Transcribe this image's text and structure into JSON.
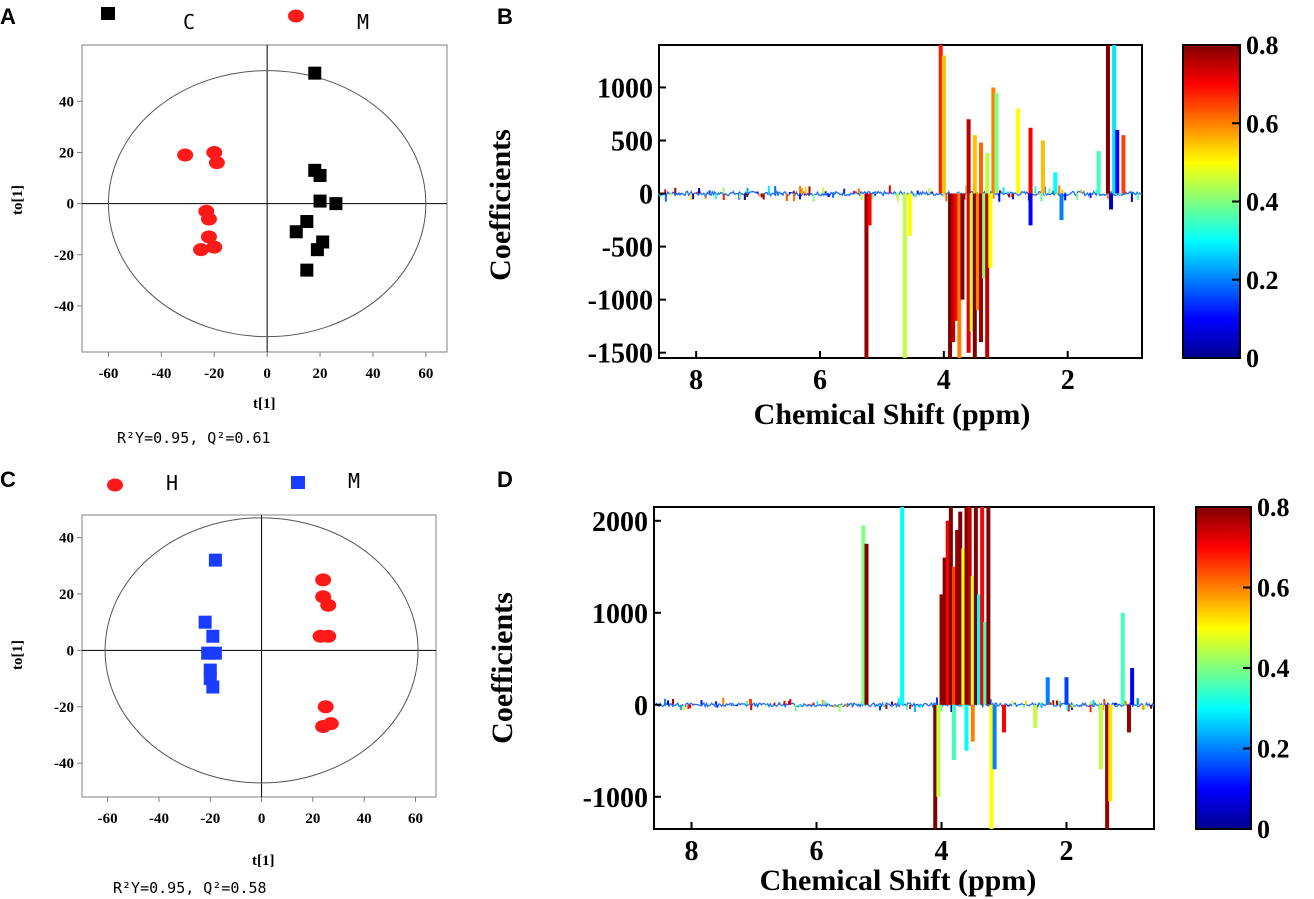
{
  "panels": {
    "A": "A",
    "B": "B",
    "C": "C",
    "D": "D"
  },
  "chart_data": [
    {
      "id": "A",
      "type": "scatter",
      "xlabel": "t[1]",
      "ylabel": "to[1]",
      "xlim": [
        -70,
        68
      ],
      "ylim": [
        -58,
        62
      ],
      "xticks": [
        -60,
        -40,
        -20,
        0,
        20,
        40,
        60
      ],
      "yticks": [
        -40,
        -20,
        0,
        20,
        40
      ],
      "ellipse": {
        "rx": 60,
        "ry": 52
      },
      "stats": "R²Y=0.95, Q²=0.61",
      "legend": [
        {
          "name": "C",
          "marker": "square",
          "color": "#000000"
        },
        {
          "name": "M",
          "marker": "circle",
          "color": "#ff1a1a"
        }
      ],
      "series": [
        {
          "name": "C",
          "marker": "square",
          "color": "#000000",
          "points": [
            [
              18,
              51
            ],
            [
              18,
              13
            ],
            [
              20,
              11
            ],
            [
              20,
              1
            ],
            [
              26,
              0
            ],
            [
              15,
              -7
            ],
            [
              11,
              -11
            ],
            [
              21,
              -15
            ],
            [
              19,
              -18
            ],
            [
              15,
              -26
            ]
          ]
        },
        {
          "name": "M",
          "marker": "circle",
          "color": "#ff1a1a",
          "points": [
            [
              -31,
              19
            ],
            [
              -20,
              20
            ],
            [
              -19,
              16
            ],
            [
              -23,
              -3
            ],
            [
              -22,
              -6
            ],
            [
              -22,
              -13
            ],
            [
              -20,
              -17
            ],
            [
              -25,
              -18
            ]
          ]
        }
      ]
    },
    {
      "id": "B",
      "type": "line",
      "xlabel": "Chemical Shift (ppm)",
      "ylabel": "Coefficients",
      "xlim": [
        8.6,
        0.8
      ],
      "ylim": [
        -1550,
        1400
      ],
      "xticks": [
        8,
        6,
        4,
        2
      ],
      "yticks": [
        1000,
        500,
        0,
        -500,
        -1000,
        -1500
      ],
      "colorbar": {
        "min": 0,
        "max": 0.8,
        "ticks": [
          "0.8",
          "0.6",
          "0.4",
          "0.2",
          "0"
        ]
      },
      "spikes": [
        [
          5.25,
          -1550,
          0.78
        ],
        [
          5.2,
          -300,
          0.7
        ],
        [
          4.63,
          -1550,
          0.45
        ],
        [
          4.55,
          -400,
          0.5
        ],
        [
          4.05,
          1400,
          0.68
        ],
        [
          4.0,
          1300,
          0.55
        ],
        [
          3.9,
          -1550,
          0.8
        ],
        [
          3.85,
          -1400,
          0.75
        ],
        [
          3.8,
          -1200,
          0.7
        ],
        [
          3.75,
          -1550,
          0.6
        ],
        [
          3.7,
          -1000,
          0.8
        ],
        [
          3.6,
          -1500,
          0.72
        ],
        [
          3.55,
          -1300,
          0.45
        ],
        [
          3.5,
          -1550,
          0.8
        ],
        [
          3.45,
          -1100,
          0.6
        ],
        [
          3.4,
          -1400,
          0.78
        ],
        [
          3.35,
          -800,
          0.4
        ],
        [
          3.3,
          -1550,
          0.75
        ],
        [
          3.25,
          -700,
          0.5
        ],
        [
          3.6,
          700,
          0.75
        ],
        [
          3.5,
          550,
          0.55
        ],
        [
          3.4,
          480,
          0.62
        ],
        [
          3.3,
          380,
          0.45
        ],
        [
          3.2,
          1000,
          0.6
        ],
        [
          3.15,
          950,
          0.4
        ],
        [
          2.8,
          800,
          0.5
        ],
        [
          2.6,
          620,
          0.7
        ],
        [
          2.4,
          500,
          0.55
        ],
        [
          2.2,
          200,
          0.3
        ],
        [
          2.1,
          -250,
          0.2
        ],
        [
          2.6,
          -300,
          0.1
        ],
        [
          1.35,
          1400,
          0.8
        ],
        [
          1.25,
          1400,
          0.28
        ],
        [
          1.2,
          600,
          0.1
        ],
        [
          1.1,
          550,
          0.65
        ],
        [
          1.5,
          400,
          0.35
        ],
        [
          1.3,
          -150,
          0.05
        ]
      ]
    },
    {
      "id": "C",
      "type": "scatter",
      "xlabel": "t[1]",
      "ylabel": "to[1]",
      "xlim": [
        -70,
        68
      ],
      "ylim": [
        -52,
        48
      ],
      "xticks": [
        -60,
        -40,
        -20,
        0,
        20,
        40,
        60
      ],
      "yticks": [
        -40,
        -20,
        0,
        20,
        40
      ],
      "ellipse": {
        "rx": 61,
        "ry": 47
      },
      "stats": "R²Y=0.95, Q²=0.58",
      "legend": [
        {
          "name": "H",
          "marker": "circle",
          "color": "#ff1a1a"
        },
        {
          "name": "M",
          "marker": "square",
          "color": "#1a3cff"
        }
      ],
      "series": [
        {
          "name": "H",
          "marker": "circle",
          "color": "#ff1a1a",
          "points": [
            [
              24,
              25
            ],
            [
              24,
              19
            ],
            [
              26,
              16
            ],
            [
              23,
              5
            ],
            [
              26,
              5
            ],
            [
              25,
              -20
            ],
            [
              24,
              -27
            ],
            [
              27,
              -26
            ]
          ]
        },
        {
          "name": "M",
          "marker": "square",
          "color": "#1a3cff",
          "points": [
            [
              -18,
              32
            ],
            [
              -22,
              10
            ],
            [
              -19,
              5
            ],
            [
              -21,
              -1
            ],
            [
              -18,
              -1
            ],
            [
              -20,
              -7
            ],
            [
              -20,
              -10
            ],
            [
              -19,
              -13
            ]
          ]
        }
      ]
    },
    {
      "id": "D",
      "type": "line",
      "xlabel": "Chemical Shift (ppm)",
      "ylabel": "Coefficients",
      "xlim": [
        8.6,
        0.6
      ],
      "ylim": [
        -1350,
        2150
      ],
      "xticks": [
        8,
        6,
        4,
        2
      ],
      "yticks": [
        2000,
        1000,
        0,
        -1000
      ],
      "colorbar": {
        "min": 0,
        "max": 0.8,
        "ticks": [
          "0.8",
          "0.6",
          "0.4",
          "0.2",
          "0"
        ]
      },
      "spikes": [
        [
          5.25,
          1950,
          0.4
        ],
        [
          5.2,
          1750,
          0.8
        ],
        [
          4.63,
          2150,
          0.3
        ],
        [
          4.1,
          -1350,
          0.8
        ],
        [
          4.05,
          -1000,
          0.45
        ],
        [
          4.0,
          1200,
          0.78
        ],
        [
          3.95,
          1600,
          0.8
        ],
        [
          3.9,
          2000,
          0.7
        ],
        [
          3.85,
          2150,
          0.8
        ],
        [
          3.8,
          1500,
          0.65
        ],
        [
          3.75,
          1900,
          0.78
        ],
        [
          3.7,
          2100,
          0.8
        ],
        [
          3.65,
          1700,
          0.5
        ],
        [
          3.6,
          2150,
          0.8
        ],
        [
          3.55,
          2150,
          0.75
        ],
        [
          3.5,
          1400,
          0.45
        ],
        [
          3.45,
          2150,
          0.8
        ],
        [
          3.4,
          1200,
          0.3
        ],
        [
          3.35,
          2150,
          0.7
        ],
        [
          3.3,
          900,
          0.35
        ],
        [
          3.25,
          2150,
          0.8
        ],
        [
          3.2,
          -1350,
          0.5
        ],
        [
          3.15,
          -700,
          0.2
        ],
        [
          3.6,
          -500,
          0.3
        ],
        [
          3.8,
          -600,
          0.35
        ],
        [
          3.5,
          -400,
          0.6
        ],
        [
          3.0,
          -300,
          0.7
        ],
        [
          2.5,
          -250,
          0.45
        ],
        [
          2.3,
          300,
          0.2
        ],
        [
          2.0,
          300,
          0.15
        ],
        [
          1.35,
          -1350,
          0.78
        ],
        [
          1.3,
          -1050,
          0.52
        ],
        [
          1.45,
          -700,
          0.45
        ],
        [
          1.1,
          1000,
          0.35
        ],
        [
          0.95,
          400,
          0.1
        ],
        [
          1.0,
          -300,
          0.78
        ]
      ]
    }
  ]
}
